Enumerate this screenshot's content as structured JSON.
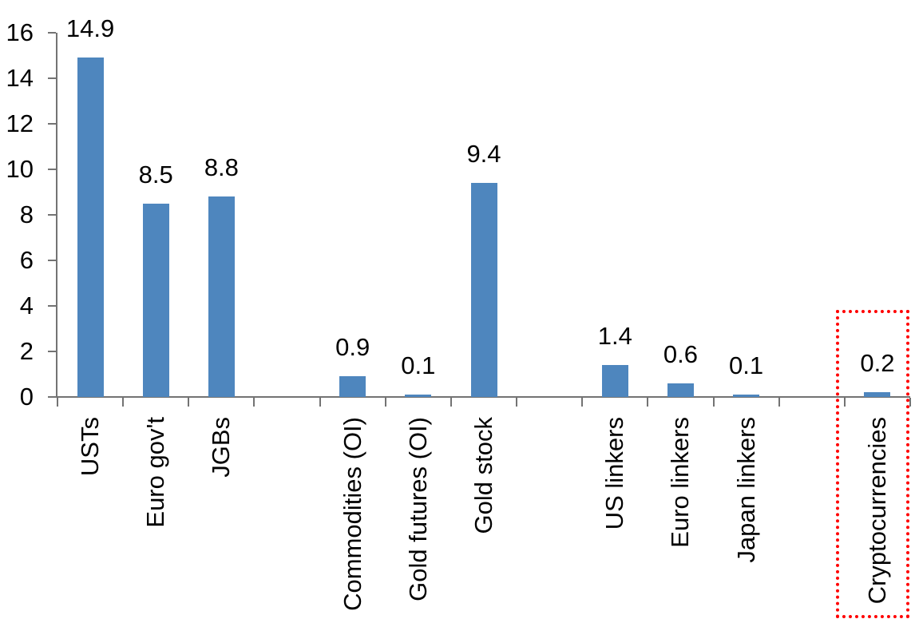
{
  "chart_data": {
    "type": "bar",
    "title": "",
    "xlabel": "",
    "ylabel": "",
    "categories": [
      "USTs",
      "Euro gov't",
      "JGBs",
      "Commodities (OI)",
      "Gold futures (OI)",
      "Gold stock",
      "US linkers",
      "Euro linkers",
      "Japan linkers",
      "Cryptocurrencies"
    ],
    "values": [
      14.9,
      8.5,
      8.8,
      0.9,
      0.1,
      9.4,
      1.4,
      0.6,
      0.1,
      0.2
    ],
    "data_labels": [
      "14.9",
      "8.5",
      "8.8",
      "0.9",
      "0.1",
      "9.4",
      "1.4",
      "0.6",
      "0.1",
      "0.2"
    ],
    "group_slots": [
      0,
      1,
      2,
      4,
      5,
      6,
      8,
      9,
      10,
      12
    ],
    "slot_count": 13,
    "ylim": [
      0,
      16
    ],
    "yticks": [
      0,
      2,
      4,
      6,
      8,
      10,
      12,
      14,
      16
    ],
    "grid": false,
    "legend": "none",
    "bar_color": "#4E86BE",
    "axis_color": "#737373",
    "text_color": "#000000",
    "highlight": {
      "category": "Cryptocurrencies",
      "shape": "dotted-rectangle",
      "color": "#FF0000"
    }
  }
}
